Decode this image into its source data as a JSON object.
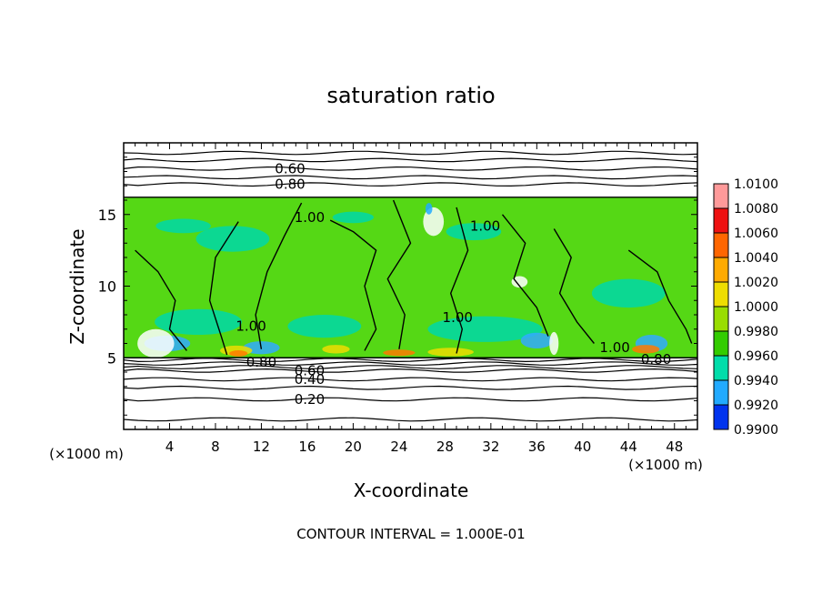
{
  "chart_data": {
    "type": "heatmap",
    "title": "saturation ratio",
    "xlabel": "X-coordinate",
    "ylabel": "Z-coordinate",
    "x_unit_label_left": "(×1000 m)",
    "x_unit_label_right": "(×1000 m)",
    "xlim": [
      0,
      50
    ],
    "ylim": [
      0,
      20
    ],
    "x_ticks": [
      4,
      8,
      12,
      16,
      20,
      24,
      28,
      32,
      36,
      40,
      44,
      48
    ],
    "x_tick_labels": [
      "4",
      "8",
      "12",
      "16",
      "20",
      "24",
      "28",
      "32",
      "36",
      "40",
      "44",
      "48"
    ],
    "y_ticks": [
      5,
      10,
      15
    ],
    "y_tick_labels": [
      "5",
      "10",
      "15"
    ],
    "footer": "CONTOUR INTERVAL = 1.000E-01",
    "colorbar": {
      "min": 0.99,
      "max": 1.01,
      "labels": [
        "1.0100",
        "1.0080",
        "1.0060",
        "1.0040",
        "1.0020",
        "1.0000",
        "0.9980",
        "0.9960",
        "0.9940",
        "0.9920",
        "0.9900"
      ],
      "colors": [
        "#ff9a9a",
        "#ee1111",
        "#ff6600",
        "#ffaa00",
        "#eedd00",
        "#99dd00",
        "#33cc00",
        "#00ddaa",
        "#22aaff",
        "#0033ee",
        "#3a0099"
      ]
    },
    "field_region": {
      "z_min": 5,
      "z_max": 16.2,
      "dominant_value": 1.0
    },
    "contour_labels": [
      {
        "text": "0.60",
        "x": 14.5,
        "z": 18.2
      },
      {
        "text": "0.80",
        "x": 14.5,
        "z": 17.1
      },
      {
        "text": "1.00",
        "x": 16.2,
        "z": 14.8
      },
      {
        "text": "1.00",
        "x": 31.5,
        "z": 14.2
      },
      {
        "text": "1.00",
        "x": 11.1,
        "z": 7.2
      },
      {
        "text": "1.00",
        "x": 29.1,
        "z": 7.8
      },
      {
        "text": "1.00",
        "x": 42.8,
        "z": 5.7
      },
      {
        "text": "0.80",
        "x": 12.0,
        "z": 4.7
      },
      {
        "text": "0.80",
        "x": 46.4,
        "z": 4.9
      },
      {
        "text": "0.60",
        "x": 16.2,
        "z": 4.1
      },
      {
        "text": "0.40",
        "x": 16.2,
        "z": 3.5
      },
      {
        "text": "0.20",
        "x": 16.2,
        "z": 2.1
      }
    ],
    "contour_levels_z": [
      0.7,
      2.1,
      2.9,
      3.5,
      4.1,
      4.35,
      4.6,
      4.85,
      17.1,
      17.6,
      18.2,
      18.8,
      19.3
    ]
  }
}
